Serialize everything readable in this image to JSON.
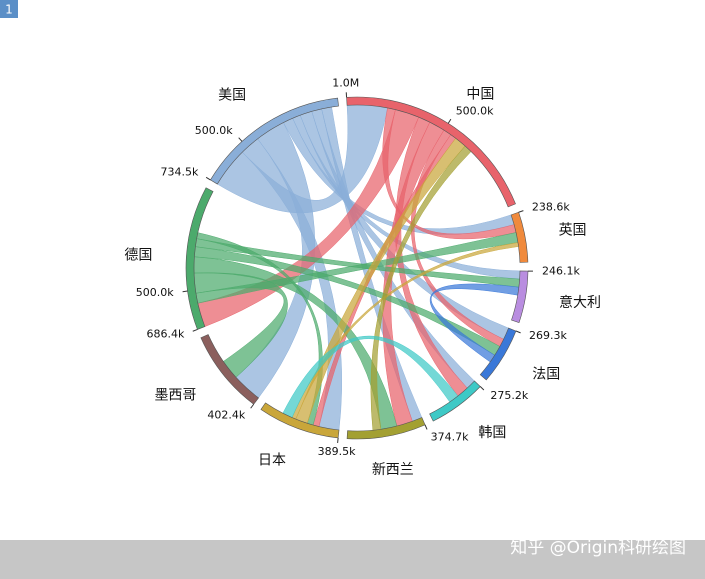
{
  "badge": "1",
  "watermark": "知乎 @Origin科研绘图",
  "chart_data": {
    "type": "chord",
    "groups": [
      {
        "name": "中国",
        "value": 1000000,
        "color": "#e8636b",
        "ticks": [
          {
            "value": 1000000,
            "label": "1.0M"
          },
          {
            "value": 500000,
            "label": "500.0k"
          }
        ]
      },
      {
        "name": "英国",
        "value": 238600,
        "color": "#f08a3c",
        "ticks": [
          {
            "value": 238600,
            "label": "238.6k"
          }
        ]
      },
      {
        "name": "意大利",
        "value": 246100,
        "color": "#b98de0",
        "ticks": [
          {
            "value": 246100,
            "label": "246.1k"
          }
        ]
      },
      {
        "name": "法国",
        "value": 269300,
        "color": "#3a78d8",
        "ticks": [
          {
            "value": 269300,
            "label": "269.3k"
          }
        ]
      },
      {
        "name": "韩国",
        "value": 275200,
        "color": "#3ec9c6",
        "ticks": [
          {
            "value": 275200,
            "label": "275.2k"
          }
        ]
      },
      {
        "name": "新西兰",
        "value": 374700,
        "color": "#a3a032",
        "ticks": [
          {
            "value": 374700,
            "label": "374.7k"
          }
        ]
      },
      {
        "name": "日本",
        "value": 389500,
        "color": "#c9a63a",
        "ticks": [
          {
            "value": 389500,
            "label": "389.5k"
          }
        ]
      },
      {
        "name": "墨西哥",
        "value": 402400,
        "color": "#8b5f5d",
        "ticks": [
          {
            "value": 402400,
            "label": "402.4k"
          }
        ]
      },
      {
        "name": "德国",
        "value": 686400,
        "color": "#4caa6c",
        "ticks": [
          {
            "value": 500000,
            "label": "500.0k"
          },
          {
            "value": 686400,
            "label": "686.4k"
          }
        ]
      },
      {
        "name": "美国",
        "value": 734500,
        "color": "#8aaed8",
        "ticks": [
          {
            "value": 500000,
            "label": "500.0k"
          },
          {
            "value": 734500,
            "label": "734.5k"
          }
        ]
      }
    ],
    "links": [
      {
        "source": 9,
        "target": 0,
        "value": 200000
      },
      {
        "source": 9,
        "target": 6,
        "value": 100000
      },
      {
        "source": 9,
        "target": 7,
        "value": 150000
      },
      {
        "source": 9,
        "target": 1,
        "value": 50000
      },
      {
        "source": 9,
        "target": 2,
        "value": 40000
      },
      {
        "source": 9,
        "target": 3,
        "value": 60000
      },
      {
        "source": 9,
        "target": 4,
        "value": 50000
      },
      {
        "source": 9,
        "target": 5,
        "value": 50000
      },
      {
        "source": 0,
        "target": 1,
        "value": 40000
      },
      {
        "source": 0,
        "target": 8,
        "value": 120000
      },
      {
        "source": 0,
        "target": 4,
        "value": 60000
      },
      {
        "source": 0,
        "target": 5,
        "value": 80000
      },
      {
        "source": 0,
        "target": 3,
        "value": 40000
      },
      {
        "source": 0,
        "target": 6,
        "value": 30000
      },
      {
        "source": 8,
        "target": 1,
        "value": 50000
      },
      {
        "source": 8,
        "target": 7,
        "value": 100000
      },
      {
        "source": 8,
        "target": 5,
        "value": 80000
      },
      {
        "source": 8,
        "target": 3,
        "value": 50000
      },
      {
        "source": 8,
        "target": 2,
        "value": 40000
      },
      {
        "source": 8,
        "target": 6,
        "value": 30000
      },
      {
        "source": 6,
        "target": 0,
        "value": 60000
      },
      {
        "source": 6,
        "target": 1,
        "value": 20000
      },
      {
        "source": 5,
        "target": 0,
        "value": 40000
      },
      {
        "source": 4,
        "target": 6,
        "value": 50000
      },
      {
        "source": 3,
        "target": 2,
        "value": 40000
      }
    ]
  }
}
